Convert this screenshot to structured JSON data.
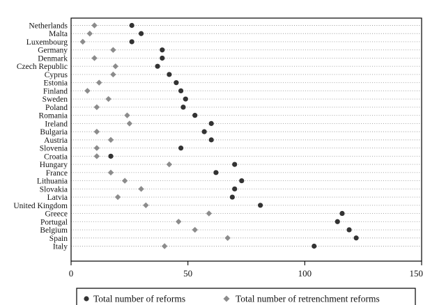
{
  "chart_data": {
    "type": "scatter",
    "categories": [
      "Netherlands",
      "Malta",
      "Luxembourg",
      "Germany",
      "Denmark",
      "Czech Republic",
      "Cyprus",
      "Estonia",
      "Finland",
      "Sweden",
      "Poland",
      "Romania",
      "Ireland",
      "Bulgaria",
      "Austria",
      "Slovenia",
      "Croatia",
      "Hungary",
      "France",
      "Lithuania",
      "Slovakia",
      "Latvia",
      "United Kingdom",
      "Greece",
      "Portugal",
      "Belgium",
      "Spain",
      "Italy"
    ],
    "series": [
      {
        "name": "Total number of reforms",
        "marker": "circle",
        "color": "#333333",
        "values": [
          26,
          30,
          26,
          39,
          39,
          37,
          42,
          45,
          47,
          49,
          48,
          53,
          60,
          57,
          60,
          47,
          17,
          70,
          62,
          73,
          70,
          69,
          81,
          116,
          114,
          119,
          122,
          104
        ]
      },
      {
        "name": "Total number of retrenchment reforms",
        "marker": "diamond",
        "color": "#8c8c8c",
        "values": [
          10,
          8,
          5,
          18,
          10,
          19,
          18,
          12,
          7,
          16,
          11,
          24,
          25,
          11,
          17,
          11,
          11,
          42,
          17,
          23,
          30,
          20,
          32,
          59,
          46,
          53,
          67,
          40
        ]
      }
    ],
    "xlim": [
      0,
      150
    ],
    "xticks": [
      0,
      50,
      100,
      150
    ],
    "grid": "dotted horizontal",
    "legend_position": "bottom"
  }
}
